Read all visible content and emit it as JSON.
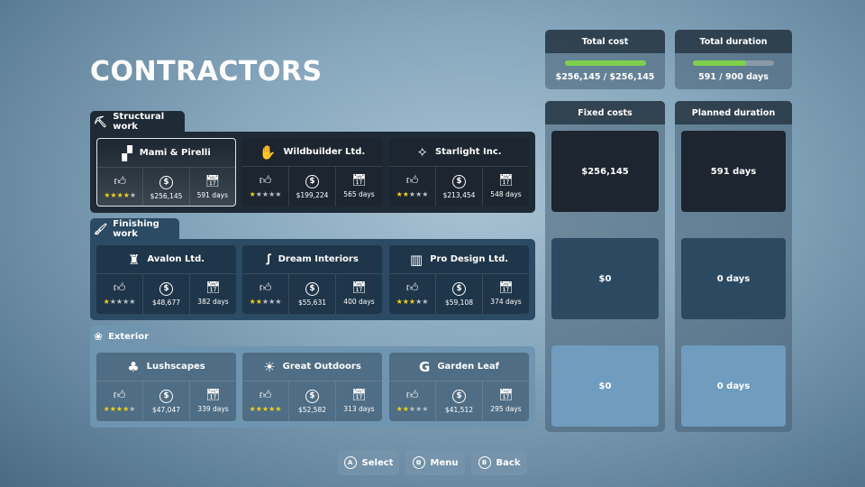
{
  "title": "CONTRACTORS",
  "categories": [
    {
      "label": "Structural work",
      "icon": "excavator-icon",
      "contractors": [
        {
          "name": "Mami & Pirelli",
          "rating": 4,
          "cost": "$256,145",
          "duration": "591 days",
          "selected": true
        },
        {
          "name": "Wildbuilder Ltd.",
          "rating": 1,
          "cost": "$199,224",
          "duration": "565 days"
        },
        {
          "name": "Starlight Inc.",
          "rating": 2,
          "cost": "$213,454",
          "duration": "548 days"
        }
      ]
    },
    {
      "label": "Finishing work",
      "icon": "paint-roller-icon",
      "contractors": [
        {
          "name": "Avalon Ltd.",
          "rating": 1,
          "cost": "$48,677",
          "duration": "382 days"
        },
        {
          "name": "Dream Interiors",
          "rating": 2,
          "cost": "$55,631",
          "duration": "400 days"
        },
        {
          "name": "Pro Design Ltd.",
          "rating": 3,
          "cost": "$59,108",
          "duration": "374 days"
        }
      ]
    },
    {
      "label": "Exterior",
      "icon": "tree-icon",
      "contractors": [
        {
          "name": "Lushscapes",
          "rating": 3.5,
          "cost": "$47,047",
          "duration": "339 days"
        },
        {
          "name": "Great Outdoors",
          "rating": 4.5,
          "cost": "$52,582",
          "duration": "313 days"
        },
        {
          "name": "Garden Leaf",
          "rating": 2,
          "cost": "$41,512",
          "duration": "295 days"
        }
      ]
    }
  ],
  "summary": {
    "total_cost": {
      "label": "Total cost",
      "value": "$256,145 / $256,145",
      "progress": 1.0
    },
    "total_duration": {
      "label": "Total duration",
      "value": "591 / 900 days",
      "progress": 0.657
    },
    "fixed_costs": {
      "label": "Fixed costs",
      "values": [
        "$256,145",
        "$0",
        "$0"
      ]
    },
    "planned_duration": {
      "label": "Planned duration",
      "values": [
        "591 days",
        "0 days",
        "0 days"
      ]
    }
  },
  "buttons": [
    {
      "key": "A",
      "label": "Select"
    },
    {
      "key": "⧉",
      "label": "Menu"
    },
    {
      "key": "B",
      "label": "Back"
    }
  ],
  "colors": {
    "progress": "#7ed04b",
    "star": "#f2d21a"
  }
}
